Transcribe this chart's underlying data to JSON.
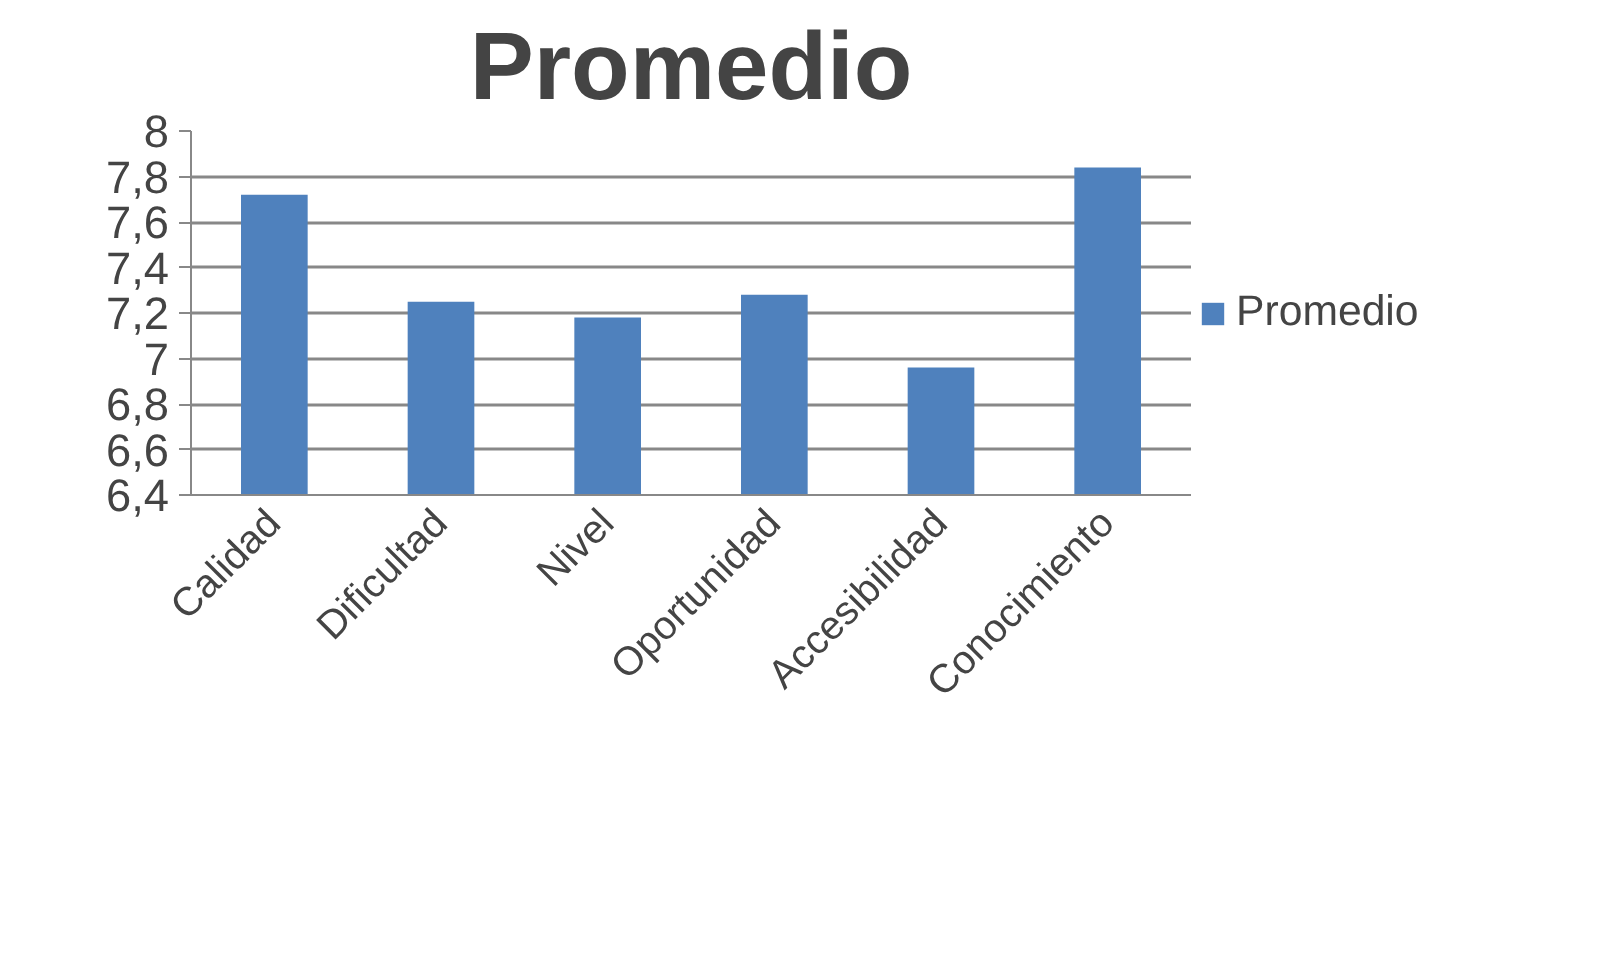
{
  "chart_data": {
    "type": "bar",
    "title": "Promedio",
    "categories": [
      "Calidad",
      "Dificultad",
      "Nivel",
      "Oportunidad",
      "Accesibilidad",
      "Conocimiento"
    ],
    "series": [
      {
        "name": "Promedio",
        "color": "#4f81bd",
        "values": [
          7.72,
          7.25,
          7.18,
          7.28,
          6.96,
          7.84
        ]
      }
    ],
    "ylim": [
      6.4,
      8
    ],
    "yticks": [
      {
        "value": 6.4,
        "label": "6,4"
      },
      {
        "value": 6.6,
        "label": "6,6"
      },
      {
        "value": 6.8,
        "label": "6,8"
      },
      {
        "value": 7,
        "label": "7"
      },
      {
        "value": 7.2,
        "label": "7,2"
      },
      {
        "value": 7.4,
        "label": "7,4"
      },
      {
        "value": 7.6,
        "label": "7,6"
      },
      {
        "value": 7.8,
        "label": "7,8"
      },
      {
        "value": 8,
        "label": "8"
      }
    ],
    "grid": "y",
    "legend": "right"
  }
}
